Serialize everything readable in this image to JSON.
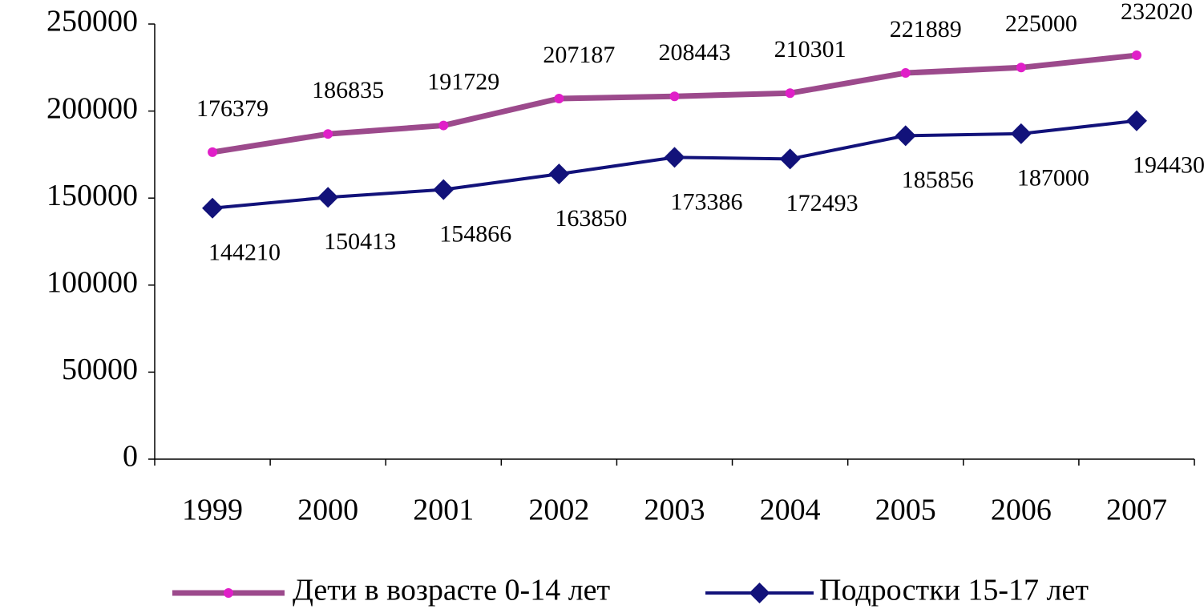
{
  "chart_data": {
    "type": "line",
    "categories": [
      "1999",
      "2000",
      "2001",
      "2002",
      "2003",
      "2004",
      "2005",
      "2006",
      "2007"
    ],
    "series": [
      {
        "name": "Дети в возрасте 0-14 лет",
        "color": "#9c4a8c",
        "marker_color": "#e01fc8",
        "marker": "circle",
        "values": [
          176379,
          186835,
          191729,
          207187,
          208443,
          210301,
          221889,
          225000,
          232020
        ]
      },
      {
        "name": "Подростки 15-17 лет",
        "color": "#12127a",
        "marker_color": "#12127a",
        "marker": "diamond",
        "values": [
          144210,
          150413,
          154866,
          163850,
          173386,
          172493,
          185856,
          187000,
          194430
        ]
      }
    ],
    "ylim": [
      0,
      250000
    ],
    "yticks": [
      0,
      50000,
      100000,
      150000,
      200000,
      250000
    ],
    "grid": false,
    "legend": "bottom"
  }
}
